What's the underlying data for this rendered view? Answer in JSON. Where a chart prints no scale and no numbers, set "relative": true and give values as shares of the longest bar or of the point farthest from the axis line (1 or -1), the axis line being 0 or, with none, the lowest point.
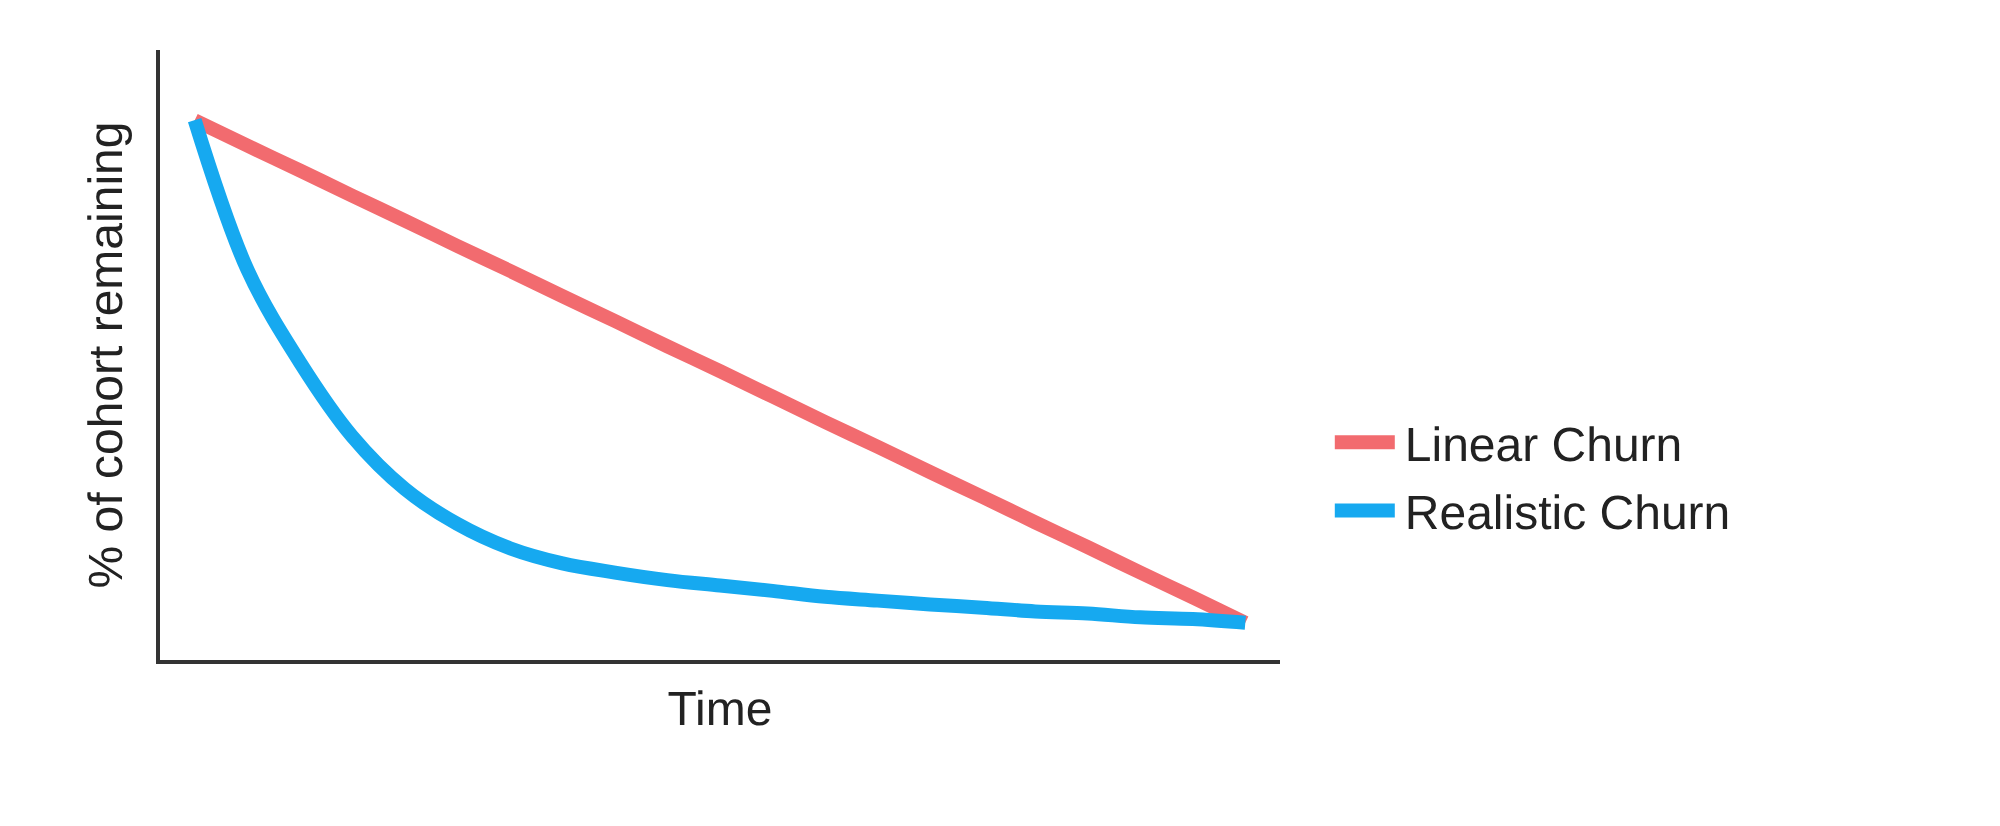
{
  "chart_data": {
    "type": "line",
    "relative": true,
    "xlabel": "Time",
    "ylabel": "% of cohort remaining",
    "legend": "right",
    "tick_labels": false,
    "categories": [
      null,
      null,
      null,
      null,
      null,
      null,
      null,
      null,
      null,
      null,
      null,
      null,
      null,
      null,
      null,
      null,
      null,
      null,
      null,
      null,
      null
    ],
    "series": [
      {
        "name": "Linear Churn",
        "color": "#f26b6f",
        "values": [
          1,
          0.953,
          0.907,
          0.86,
          0.814,
          0.767,
          0.721,
          0.674,
          0.628,
          0.581,
          0.535,
          0.488,
          0.441,
          0.395,
          0.348,
          0.302,
          0.255,
          0.209,
          0.162,
          0.116,
          0.069
        ]
      },
      {
        "name": "Realistic Churn",
        "color": "#16a9f0",
        "values": [
          1,
          0.724,
          0.552,
          0.414,
          0.317,
          0.252,
          0.207,
          0.179,
          0.162,
          0.148,
          0.138,
          0.128,
          0.117,
          0.11,
          0.103,
          0.097,
          0.09,
          0.086,
          0.079,
          0.076,
          0.069
        ]
      }
    ]
  }
}
